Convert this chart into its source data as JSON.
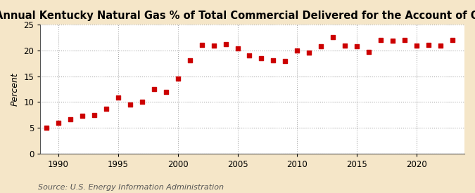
{
  "title": "Annual Kentucky Natural Gas % of Total Commercial Delivered for the Account of Others",
  "ylabel": "Percent",
  "source": "Source: U.S. Energy Information Administration",
  "fig_background_color": "#f5e6c8",
  "plot_background_color": "#ffffff",
  "years": [
    1989,
    1990,
    1991,
    1992,
    1993,
    1994,
    1995,
    1996,
    1997,
    1998,
    1999,
    2000,
    2001,
    2002,
    2003,
    2004,
    2005,
    2006,
    2007,
    2008,
    2009,
    2010,
    2011,
    2012,
    2013,
    2014,
    2015,
    2016,
    2017,
    2018,
    2019,
    2020,
    2021,
    2022,
    2023
  ],
  "values": [
    5.0,
    5.9,
    6.7,
    7.3,
    7.5,
    8.7,
    10.8,
    9.5,
    10.1,
    12.5,
    12.0,
    14.5,
    18.1,
    21.1,
    21.0,
    21.2,
    20.4,
    19.0,
    18.5,
    18.1,
    18.0,
    20.0,
    19.6,
    20.8,
    22.6,
    21.0,
    20.8,
    19.7,
    22.0,
    21.9,
    22.0,
    20.9,
    21.1,
    21.0,
    22.0
  ],
  "marker_color": "#cc0000",
  "marker_size": 16,
  "xlim": [
    1988.5,
    2024
  ],
  "ylim": [
    0,
    25
  ],
  "yticks": [
    0,
    5,
    10,
    15,
    20,
    25
  ],
  "xticks": [
    1990,
    1995,
    2000,
    2005,
    2010,
    2015,
    2020
  ],
  "grid_color": "#aaaaaa",
  "spine_color": "#555555",
  "title_fontsize": 10.5,
  "tick_fontsize": 8.5,
  "ylabel_fontsize": 9,
  "source_fontsize": 8
}
